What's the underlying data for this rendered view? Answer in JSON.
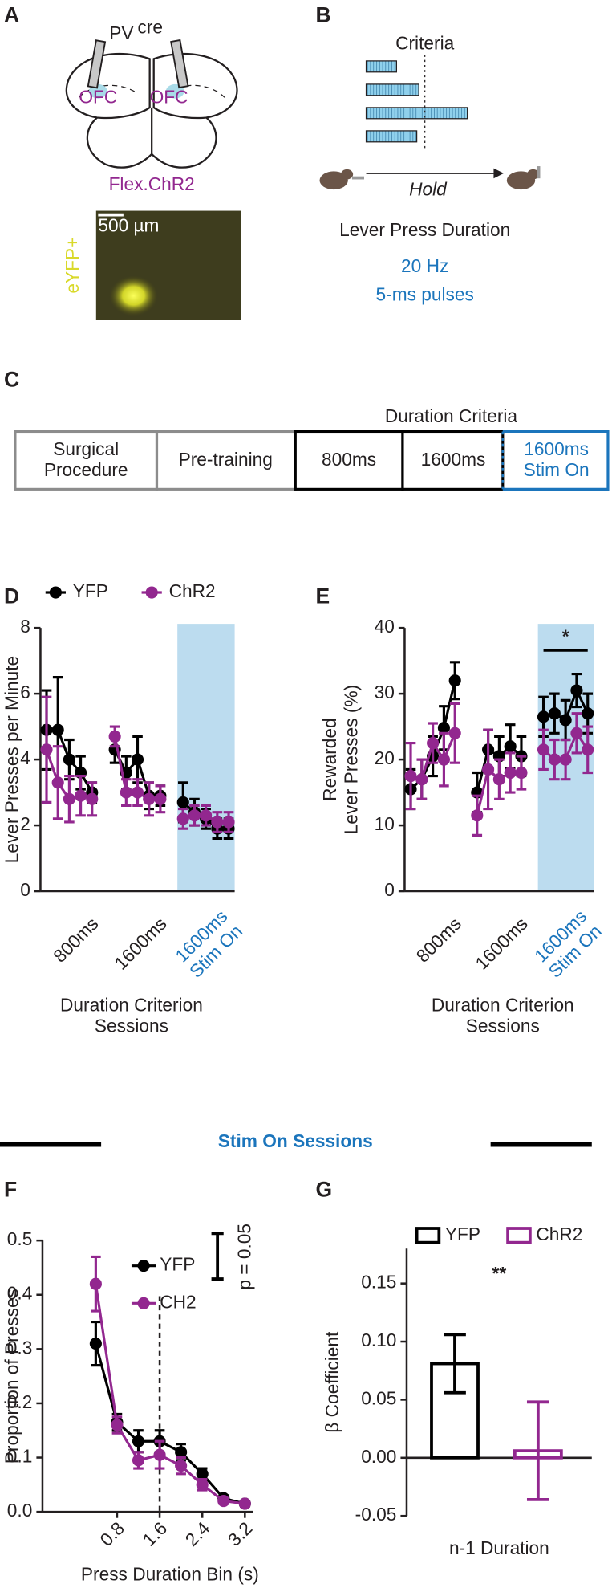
{
  "panel_labels": [
    "A",
    "B",
    "C",
    "D",
    "E",
    "F",
    "G"
  ],
  "panel_a": {
    "title": "PV",
    "superscript": "cre",
    "region_left": "OFC",
    "region_right": "OFC",
    "virus": "Flex.ChR2",
    "scale_bar": "500 µm",
    "stain": "eYFP+"
  },
  "panel_b": {
    "criteria": "Criteria",
    "hold": "Hold",
    "task": "Lever Press Duration",
    "frequency": "20 Hz",
    "pulses": "5-ms pulses"
  },
  "panel_c": {
    "header": "Duration Criteria",
    "stages": [
      "Surgical\nProcedure",
      "Pre-training",
      "800ms",
      "1600ms",
      "1600ms\nStim On"
    ]
  },
  "section_title": "Stim On Sessions",
  "chart_data": [
    {
      "type": "line",
      "y_label": "Lever Presses per Minute",
      "x_label": "Duration Criterion\nSessions",
      "categories": [
        null,
        null,
        null,
        null,
        "800ms",
        null,
        null,
        null,
        null,
        null,
        "1600ms",
        null,
        null,
        null,
        null,
        null,
        "1600ms\nStim On"
      ],
      "ylim": [
        0,
        8
      ],
      "yticks": [
        0,
        2,
        4,
        6,
        8
      ],
      "legend": "top",
      "highlight_color": "#bcdcef",
      "highlight_label_color": "#1b75bc",
      "series": [
        {
          "name": "YFP",
          "color": "#000000",
          "values": [
            4.9,
            4.9,
            4.0,
            3.6,
            3.0,
            null,
            4.3,
            3.6,
            4.0,
            2.9,
            2.9,
            null,
            2.7,
            2.4,
            2.2,
            1.9,
            1.9
          ],
          "errors": [
            1.2,
            1.6,
            0.6,
            0.5,
            0.3,
            null,
            0.4,
            0.5,
            0.7,
            0.4,
            0.3,
            null,
            0.6,
            0.4,
            0.3,
            0.3,
            0.3
          ]
        },
        {
          "name": "ChR2",
          "color": "#92278f",
          "values": [
            4.3,
            3.3,
            2.8,
            2.9,
            2.8,
            null,
            4.7,
            3.0,
            3.0,
            2.8,
            2.8,
            null,
            2.2,
            2.3,
            2.3,
            2.1,
            2.1
          ],
          "errors": [
            1.6,
            1.1,
            0.7,
            0.6,
            0.5,
            null,
            0.3,
            0.4,
            0.4,
            0.5,
            0.4,
            null,
            0.3,
            0.3,
            0.3,
            0.3,
            0.3
          ]
        }
      ]
    },
    {
      "type": "line",
      "y_label": "Rewarded\nLever Presses (%)",
      "x_label": "Duration Criterion\nSessions",
      "categories": [
        null,
        null,
        null,
        null,
        "800ms",
        null,
        null,
        null,
        null,
        null,
        "1600ms",
        null,
        null,
        null,
        null,
        null,
        "1600ms\nStim On"
      ],
      "ylim": [
        0,
        40
      ],
      "yticks": [
        0,
        10,
        20,
        30,
        40
      ],
      "annotations": [
        "*"
      ],
      "highlight_color": "#bcdcef",
      "highlight_label_color": "#1b75bc",
      "series": [
        {
          "color": "#000000",
          "values": [
            15.5,
            17,
            20.5,
            24.8,
            32,
            null,
            15,
            21.5,
            20.5,
            22,
            20.5,
            null,
            26.5,
            27,
            26,
            30.5,
            27
          ],
          "errors": [
            3,
            3,
            3,
            3.3,
            2.8,
            null,
            3,
            3,
            3,
            3.3,
            3,
            null,
            3,
            3,
            3,
            2.5,
            3
          ]
        },
        {
          "color": "#92278f",
          "values": [
            17.5,
            17,
            22.5,
            20,
            24,
            null,
            11.5,
            18.5,
            17,
            18,
            18,
            null,
            21.5,
            20,
            20,
            24,
            21.5
          ],
          "errors": [
            5,
            3,
            3,
            4,
            4.5,
            null,
            3,
            6,
            3,
            3,
            2.5,
            null,
            3,
            3,
            3,
            3,
            3.5
          ]
        }
      ]
    },
    {
      "type": "line",
      "y_label": "Proportion of Presses",
      "x_label": "Press Duration Bin (s)",
      "x": [
        0.4,
        0.8,
        1.2,
        1.6,
        2.0,
        2.4,
        2.8,
        3.2
      ],
      "xlim": [
        -0.6,
        3.35
      ],
      "xticks": [
        0.8,
        1.6,
        2.4,
        3.2
      ],
      "ylim": [
        0,
        0.5
      ],
      "yticks": [
        {
          "value": 0,
          "label": "0.0"
        },
        0.1,
        0.2,
        0.3,
        0.4,
        0.5
      ],
      "vline": 1.6,
      "legend": "top-right",
      "scale_bar_label": "p = 0.05",
      "series": [
        {
          "name": "YFP",
          "color": "#000000",
          "values": [
            0.31,
            0.165,
            0.13,
            0.13,
            0.11,
            0.07,
            0.025,
            0.015
          ],
          "errors": [
            0.04,
            0.015,
            0.02,
            0.02,
            0.015,
            0.01,
            0.005,
            0.005
          ]
        },
        {
          "name": "CH2",
          "color": "#92278f",
          "values": [
            0.42,
            0.16,
            0.095,
            0.105,
            0.085,
            0.05,
            0.02,
            0.015
          ],
          "errors": [
            0.05,
            0.015,
            0.015,
            0.025,
            0.015,
            0.01,
            0.005,
            0.005
          ]
        }
      ]
    },
    {
      "type": "bar",
      "y_label": "β Coefficient",
      "categories": [
        "n-1 Duration"
      ],
      "ylim": [
        -0.05,
        0.18
      ],
      "yticks": [
        -0.05,
        {
          "value": 0,
          "label": "0.00"
        },
        0.05,
        {
          "value": 0.1,
          "label": "0.10"
        },
        0.15
      ],
      "legend": "top",
      "annotations": [
        "**"
      ],
      "series": [
        {
          "name": "YFP",
          "color": "#000000",
          "values": [
            0.081
          ],
          "errors": [
            0.025
          ]
        },
        {
          "name": "ChR2",
          "color": "#92278f",
          "values": [
            0.006
          ],
          "errors": [
            0.042
          ]
        }
      ]
    }
  ]
}
